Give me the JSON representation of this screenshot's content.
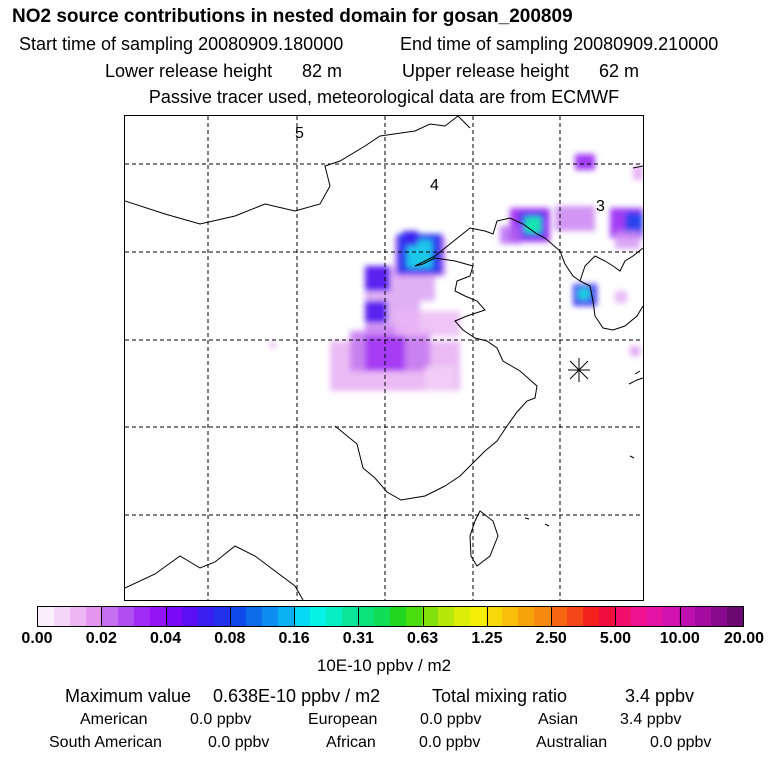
{
  "title": "NO2 source contributions in nested domain for gosan_200809",
  "sampling": {
    "start_label": "Start time of sampling 20080909.180000",
    "end_label": "End time of sampling 20080909.210000"
  },
  "release": {
    "lower_label": "Lower release height",
    "lower_value": "82 m",
    "upper_label": "Upper release height",
    "upper_value": "62 m"
  },
  "tracer_note": "Passive tracer used, meteorological data are from ECMWF",
  "map": {
    "region_labels": [
      "5",
      "4",
      "3"
    ],
    "receptor_marker": "gosan-receptor"
  },
  "colorbar": {
    "colors": [
      "#fbeefb",
      "#f6d6f8",
      "#eeb7f4",
      "#e596ef",
      "#c66ff0",
      "#b24ff3",
      "#a12cf6",
      "#9514f5",
      "#7a0af6",
      "#5a10f2",
      "#3b1ff0",
      "#2231ec",
      "#0f49ea",
      "#0c6cea",
      "#0d8df0",
      "#09b0f2",
      "#06d9f4",
      "#07f3e5",
      "#08eec4",
      "#0ae59a",
      "#0ce27a",
      "#11dd55",
      "#20d61e",
      "#4ade10",
      "#82e10d",
      "#b6e80a",
      "#dcee08",
      "#f5ee06",
      "#f7d808",
      "#f9bf0a",
      "#f8a20b",
      "#f6880d",
      "#f66611",
      "#f44616",
      "#f2211c",
      "#f20d3f",
      "#f10f6b",
      "#ee1290",
      "#e313a6",
      "#d212b1",
      "#bd10ad",
      "#a50da2",
      "#8a0a8e",
      "#6a0a70"
    ],
    "ticks": [
      "0.00",
      "0.02",
      "0.04",
      "0.08",
      "0.16",
      "0.31",
      "0.63",
      "1.25",
      "2.50",
      "5.00",
      "10.00",
      "20.00"
    ],
    "units": "10E-10 ppbv / m2"
  },
  "summary": {
    "max_label": "Maximum value",
    "max_value": "0.638E-10 ppbv / m2",
    "total_label": "Total mixing ratio",
    "total_value": "3.4 ppbv"
  },
  "regions": [
    {
      "name": "American",
      "value": "0.0 ppbv"
    },
    {
      "name": "European",
      "value": "0.0 ppbv"
    },
    {
      "name": "Asian",
      "value": "3.4 ppbv"
    },
    {
      "name": "South American",
      "value": "0.0 ppbv"
    },
    {
      "name": "African",
      "value": "0.0 ppbv"
    },
    {
      "name": "Australian",
      "value": "0.0 ppbv"
    }
  ]
}
